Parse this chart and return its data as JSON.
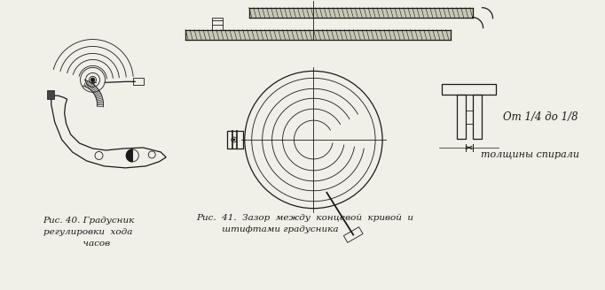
{
  "bg_color": "#f0efe8",
  "line_color": "#1a1a1a",
  "caption1": "Рис. 40. Градусник\nрегулировки  хода\n      часов",
  "caption2": "Рис.  41.  Зазор  между  концевой  кривой  и\n         штифтами градусника",
  "annotation": "От 1/4 до 1/8",
  "annotation2": "толщины спирали",
  "fig_width": 6.82,
  "fig_height": 3.28
}
